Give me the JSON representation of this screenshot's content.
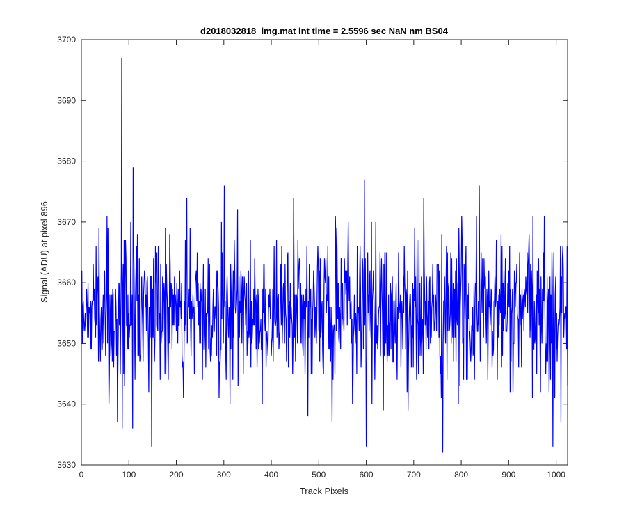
{
  "chart_data": {
    "type": "line",
    "title": "d2018032818_img.mat int time = 2.5596 sec  NaN nm BS04",
    "xlabel": "Track Pixels",
    "ylabel": "Signal (ADU) at pixel 896",
    "xlim": [
      0,
      1024
    ],
    "ylim": [
      3630,
      3700
    ],
    "xticks": [
      0,
      100,
      200,
      300,
      400,
      500,
      600,
      700,
      800,
      900,
      1000
    ],
    "yticks": [
      3630,
      3640,
      3650,
      3660,
      3670,
      3680,
      3690,
      3700
    ],
    "grid": false,
    "legend": "none",
    "line_color": "#0000ff",
    "series": [
      {
        "n_points": 1024,
        "baseline": 3655,
        "approx_std": 6.5,
        "features": [
          {
            "x": 84,
            "y": 3697
          },
          {
            "x": 85,
            "y": 3636
          },
          {
            "x": 108,
            "y": 3679
          },
          {
            "x": 107,
            "y": 3636
          },
          {
            "x": 147,
            "y": 3633
          },
          {
            "x": 599,
            "y": 3633
          },
          {
            "x": 595,
            "y": 3677
          },
          {
            "x": 760,
            "y": 3632
          },
          {
            "x": 992,
            "y": 3633
          },
          {
            "x": 837,
            "y": 3676
          },
          {
            "x": 300,
            "y": 3676
          }
        ]
      }
    ]
  }
}
